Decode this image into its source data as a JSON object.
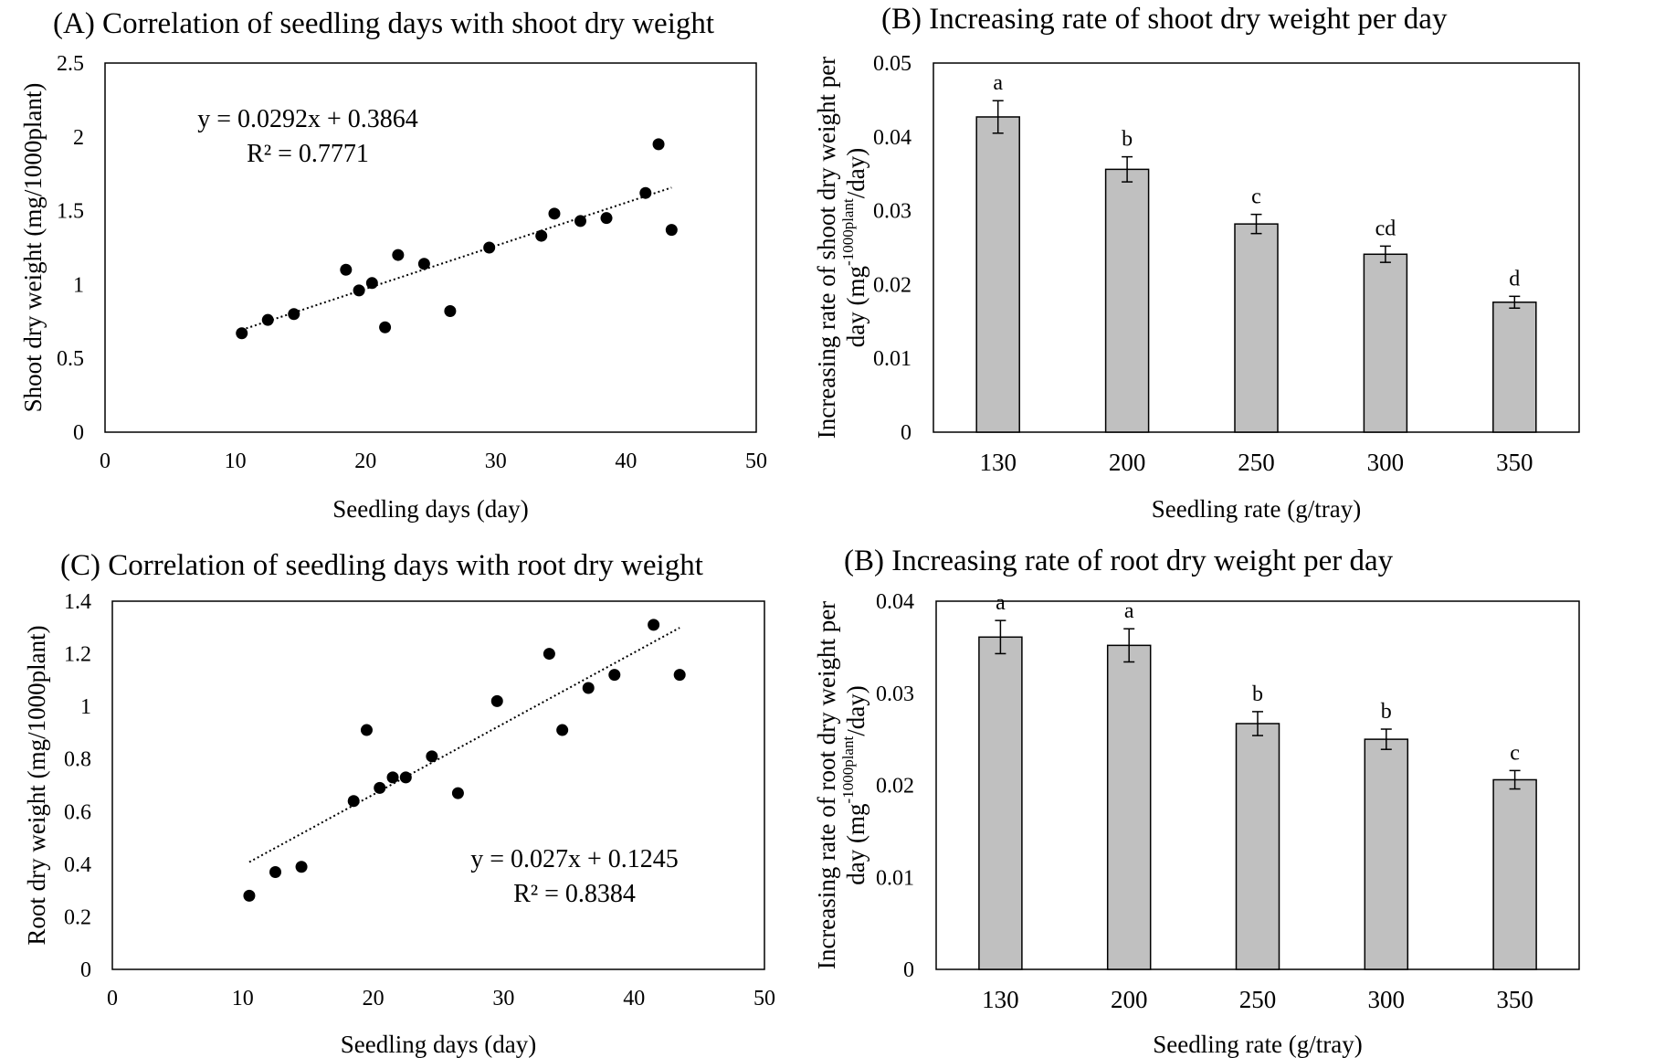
{
  "chart_data": [
    {
      "id": "A",
      "type": "scatter",
      "title": "(A) Correlation of seedling days with shoot dry weight",
      "xlabel": "Seedling days (day)",
      "ylabel": "Shoot dry weight (mg/1000plant)",
      "xlim": [
        0,
        50
      ],
      "ylim": [
        0,
        2.5
      ],
      "xticks": [
        "0",
        "10",
        "20",
        "30",
        "40",
        "50"
      ],
      "yticks": [
        "0",
        "0.5",
        "1",
        "1.5",
        "2",
        "2.5"
      ],
      "points": [
        {
          "x": 10.5,
          "y": 0.67
        },
        {
          "x": 12.5,
          "y": 0.76
        },
        {
          "x": 14.5,
          "y": 0.8
        },
        {
          "x": 18.5,
          "y": 1.1
        },
        {
          "x": 19.5,
          "y": 0.96
        },
        {
          "x": 20.5,
          "y": 1.01
        },
        {
          "x": 21.5,
          "y": 0.71
        },
        {
          "x": 22.5,
          "y": 1.2
        },
        {
          "x": 24.5,
          "y": 1.14
        },
        {
          "x": 26.5,
          "y": 0.82
        },
        {
          "x": 29.5,
          "y": 1.25
        },
        {
          "x": 33.5,
          "y": 1.33
        },
        {
          "x": 34.5,
          "y": 1.48
        },
        {
          "x": 36.5,
          "y": 1.43
        },
        {
          "x": 38.5,
          "y": 1.45
        },
        {
          "x": 41.5,
          "y": 1.62
        },
        {
          "x": 42.5,
          "y": 1.95
        },
        {
          "x": 43.5,
          "y": 1.37
        }
      ],
      "trendline": {
        "slope": 0.0292,
        "intercept": 0.3864,
        "x_range": [
          10.5,
          43.5
        ]
      },
      "equation": "y = 0.0292x + 0.3864",
      "r2": "R² = 0.7771",
      "annotation_position": "top-left"
    },
    {
      "id": "B1",
      "type": "bar",
      "title": "(B) Increasing rate of shoot dry weight per day",
      "xlabel": "Seedling rate (g/tray)",
      "ylabel_line1": "Increasing rate of shoot dry weight per",
      "ylabel_line2_pre": "day (mg",
      "ylabel_line2_sup": "-1000plant",
      "ylabel_line2_post": "/day)",
      "ylim": [
        0,
        0.05
      ],
      "yticks": [
        "0",
        "0.01",
        "0.02",
        "0.03",
        "0.04",
        "0.05"
      ],
      "categories": [
        "130",
        "200",
        "250",
        "300",
        "350"
      ],
      "values": [
        0.0427,
        0.0356,
        0.0282,
        0.0241,
        0.0176
      ],
      "errors": [
        0.0022,
        0.0017,
        0.0013,
        0.0011,
        0.0008
      ],
      "letters": [
        "a",
        "b",
        "c",
        "cd",
        "d"
      ],
      "bar_color": "#c0c0c0"
    },
    {
      "id": "C",
      "type": "scatter",
      "title": "(C) Correlation of seedling days with root dry weight",
      "xlabel": "Seedling days (day)",
      "ylabel": "Root dry weight (mg/1000plant)",
      "xlim": [
        0,
        50
      ],
      "ylim": [
        0,
        1.4
      ],
      "xticks": [
        "0",
        "10",
        "20",
        "30",
        "40",
        "50"
      ],
      "yticks": [
        "0",
        "0.2",
        "0.4",
        "0.6",
        "0.8",
        "1",
        "1.2",
        "1.4"
      ],
      "points": [
        {
          "x": 10.5,
          "y": 0.28
        },
        {
          "x": 12.5,
          "y": 0.37
        },
        {
          "x": 14.5,
          "y": 0.39
        },
        {
          "x": 18.5,
          "y": 0.64
        },
        {
          "x": 19.5,
          "y": 0.91
        },
        {
          "x": 20.5,
          "y": 0.69
        },
        {
          "x": 21.5,
          "y": 0.73
        },
        {
          "x": 22.5,
          "y": 0.73
        },
        {
          "x": 24.5,
          "y": 0.81
        },
        {
          "x": 26.5,
          "y": 0.67
        },
        {
          "x": 29.5,
          "y": 1.02
        },
        {
          "x": 33.5,
          "y": 1.2
        },
        {
          "x": 34.5,
          "y": 0.91
        },
        {
          "x": 36.5,
          "y": 1.07
        },
        {
          "x": 38.5,
          "y": 1.12
        },
        {
          "x": 41.5,
          "y": 1.31
        },
        {
          "x": 43.5,
          "y": 1.12
        }
      ],
      "trendline": {
        "slope": 0.027,
        "intercept": 0.1245,
        "x_range": [
          10.5,
          43.5
        ]
      },
      "equation": "y = 0.027x + 0.1245",
      "r2": "R² = 0.8384",
      "annotation_position": "bottom-right"
    },
    {
      "id": "B2",
      "type": "bar",
      "title": "(B) Increasing rate of root dry weight per day",
      "xlabel": "Seedling rate (g/tray)",
      "ylabel_line1": "Increasing rate of root dry weight per",
      "ylabel_line2_pre": "day (mg",
      "ylabel_line2_sup": "-1000plant",
      "ylabel_line2_post": "/day)",
      "ylim": [
        0,
        0.04
      ],
      "yticks": [
        "0",
        "0.01",
        "0.02",
        "0.03",
        "0.04"
      ],
      "categories": [
        "130",
        "200",
        "250",
        "300",
        "350"
      ],
      "values": [
        0.0361,
        0.0352,
        0.0267,
        0.025,
        0.0206
      ],
      "errors": [
        0.0018,
        0.0018,
        0.0013,
        0.0011,
        0.001
      ],
      "letters": [
        "a",
        "a",
        "b",
        "b",
        "c"
      ],
      "bar_color": "#c0c0c0"
    }
  ]
}
